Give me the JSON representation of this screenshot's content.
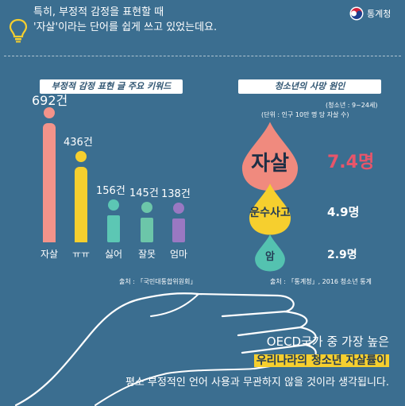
{
  "header": {
    "logo_text": "통계청",
    "intro_line1": "특히, 부정적 감정을 표현할 때",
    "intro_line2": "'자살'이라는 단어를 쉽게 쓰고 있었는데요."
  },
  "left_panel": {
    "title": "부정적 감정 표현 글 주요 키워드",
    "source": "출처 : 「국민대통합위원회」"
  },
  "chart_data": [
    {
      "type": "bar",
      "title": "부정적 감정 표현 글 주요 키워드",
      "categories": [
        "자살",
        "ㅠㅠ",
        "싫어",
        "잘못",
        "엄마"
      ],
      "values": [
        692,
        436,
        156,
        145,
        138
      ],
      "value_labels": [
        "692건",
        "436건",
        "156건",
        "145건",
        "138건"
      ],
      "unit": "건",
      "colors": [
        "#f3938a",
        "#f6cf2e",
        "#5cc7b4",
        "#6cc6a9",
        "#9a78c2"
      ]
    },
    {
      "type": "table",
      "title": "청소년의 사망 원인",
      "note_age": "(청소년 : 9~24세)",
      "note_unit": "(단위 : 인구 10만 명 당 자살 수)",
      "categories": [
        "자살",
        "운수사고",
        "암"
      ],
      "values": [
        7.4,
        4.9,
        2.9
      ],
      "value_labels": [
        "7.4명",
        "4.9명",
        "2.9명"
      ],
      "unit": "명",
      "colors": [
        "#f08a7e",
        "#f6cf2e",
        "#54c2b0"
      ],
      "source": "출처 : 「통계청」, 2016 청소년 통계"
    }
  ],
  "right_panel": {
    "title": "청소년의 사망 원인"
  },
  "bottom": {
    "line1": "OECD국가 중 가장 높은",
    "line2": "우리나라의 청소년 자살률이",
    "line3": "평소 부정적인 언어 사용과 무관하지 않을 것이라 생각됩니다."
  }
}
